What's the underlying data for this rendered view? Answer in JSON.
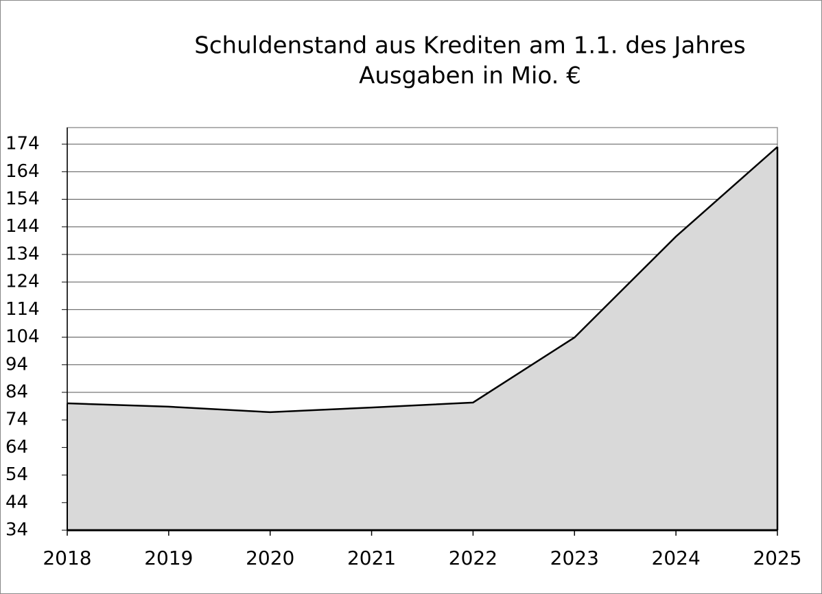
{
  "chart_data": {
    "type": "area",
    "title": "Schuldenstand aus Krediten am 1.1. des Jahres",
    "subtitle": "Ausgaben in Mio. €",
    "categories": [
      "2018",
      "2019",
      "2020",
      "2021",
      "2022",
      "2023",
      "2024",
      "2025"
    ],
    "values": [
      80,
      78.8,
      76.8,
      78.5,
      80.3,
      103.9,
      140.5,
      173
    ],
    "color": "#d9d9d9",
    "line_color": "#000000",
    "ylim": [
      34,
      180
    ],
    "yticks": [
      34,
      44,
      54,
      64,
      74,
      84,
      94,
      104,
      114,
      124,
      134,
      144,
      154,
      164,
      174
    ],
    "grid": true
  }
}
